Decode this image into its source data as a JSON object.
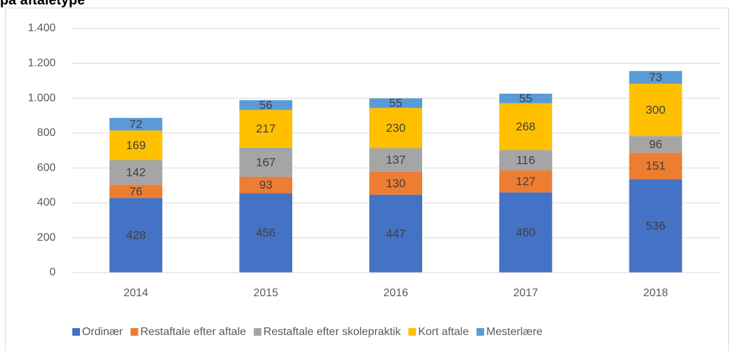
{
  "chart_data": {
    "type": "bar",
    "stacked": true,
    "title": "på aftaletype",
    "categories": [
      "2014",
      "2015",
      "2016",
      "2017",
      "2018"
    ],
    "series": [
      {
        "name": "Ordinær",
        "color": "#4472c4",
        "values": [
          428,
          456,
          447,
          460,
          536
        ]
      },
      {
        "name": "Restaftale efter aftale",
        "color": "#ed7d31",
        "values": [
          76,
          93,
          130,
          127,
          151
        ]
      },
      {
        "name": "Restaftale efter skolepraktik",
        "color": "#a5a5a5",
        "values": [
          142,
          167,
          137,
          116,
          96
        ]
      },
      {
        "name": "Kort aftale",
        "color": "#ffc000",
        "values": [
          169,
          217,
          230,
          268,
          300
        ]
      },
      {
        "name": "Mesterlære",
        "color": "#5b9bd5",
        "values": [
          72,
          56,
          55,
          55,
          73
        ]
      }
    ],
    "ylim": [
      0,
      1400
    ],
    "yticks": [
      0,
      200,
      400,
      600,
      800,
      {
        "value": 1000,
        "label": "1.000"
      },
      {
        "value": 1200,
        "label": "1.200"
      },
      {
        "value": 1400,
        "label": "1.400"
      }
    ],
    "grid": true,
    "legend": "bottom"
  }
}
